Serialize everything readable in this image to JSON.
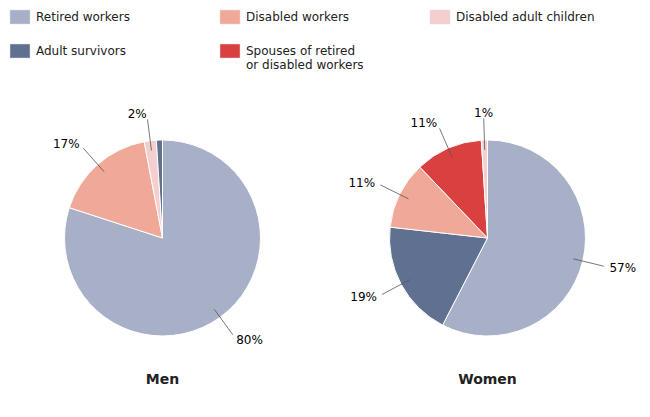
{
  "chart_data": [
    {
      "type": "pie",
      "title": "Men",
      "categories": [
        "Retired workers",
        "Disabled workers",
        "Disabled adult children",
        "Adult survivors"
      ],
      "values": [
        80,
        17,
        2,
        1
      ],
      "value_labels": [
        "80%",
        "17%",
        "2%",
        null
      ],
      "colors": [
        "#a8b0c8",
        "#f0a898",
        "#f5cece",
        "#607090"
      ],
      "data_labels": true,
      "legend": "upper left"
    },
    {
      "type": "pie",
      "title": "Women",
      "categories": [
        "Retired workers",
        "Adult survivors",
        "Disabled workers",
        "Spouses of retired\nor disabled workers",
        "Disabled adult children"
      ],
      "values": [
        57,
        19,
        11,
        11,
        1
      ],
      "value_labels": [
        "57%",
        "19%",
        "11%",
        "11%",
        "1%"
      ],
      "colors": [
        "#a8b0c8",
        "#607090",
        "#f0a898",
        "#d94040",
        "#f5cece"
      ],
      "data_labels": true,
      "legend": "upper left"
    }
  ]
}
